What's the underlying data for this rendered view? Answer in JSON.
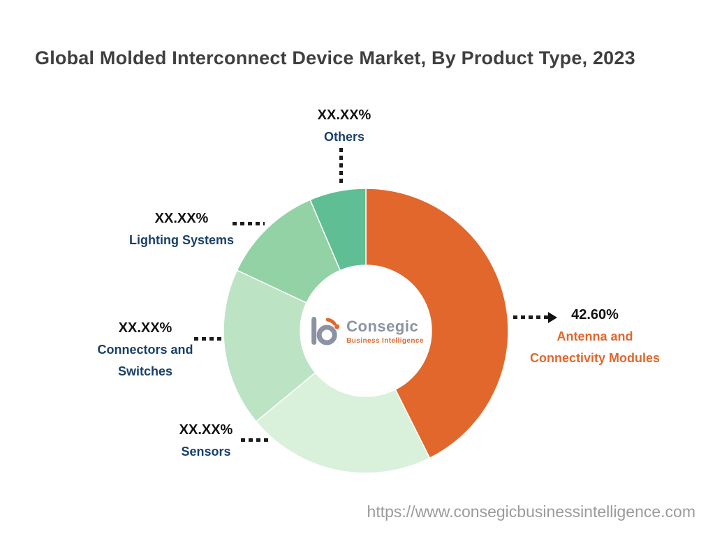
{
  "title": "Global Molded Interconnect Device Market, By Product Type, 2023",
  "footer": {
    "url": "https://www.consegicbusinessintelligence.com"
  },
  "logo": {
    "name": "Consegic",
    "subtitle": "Business Intelligence"
  },
  "colors": {
    "accent_orange": "#e2672c",
    "label_navy": "#17406b",
    "title_gray": "#3f3f3f",
    "url_gray": "#9b9b9b",
    "leader_line": "#1b1b1b"
  },
  "chart_data": {
    "type": "pie",
    "subtype": "donut",
    "title": "Global Molded Interconnect Device Market, By Product Type, 2023",
    "legend_position": "callout-labels",
    "start_angle_deg": 0,
    "direction": "clockwise",
    "inner_radius_ratio": 0.46,
    "segments": [
      {
        "label": "Antenna and Connectivity Modules",
        "label_lines": [
          "Antenna and",
          "Connectivity Modules"
        ],
        "value_label": "42.60%",
        "value": 42.6,
        "masked": false,
        "color": "#e2672c"
      },
      {
        "label": "Sensors",
        "label_lines": [
          "Sensors"
        ],
        "value_label": "XX.XX%",
        "value": 21.4,
        "masked": true,
        "color": "#d9f0db"
      },
      {
        "label": "Connectors and Switches",
        "label_lines": [
          "Connectors and",
          "Switches"
        ],
        "value_label": "XX.XX%",
        "value": 18.0,
        "masked": true,
        "color": "#bce3c3"
      },
      {
        "label": "Lighting Systems",
        "label_lines": [
          "Lighting Systems"
        ],
        "value_label": "XX.XX%",
        "value": 11.6,
        "masked": true,
        "color": "#93d2a4"
      },
      {
        "label": "Others",
        "label_lines": [
          "Others"
        ],
        "value_label": "XX.XX%",
        "value": 6.4,
        "masked": true,
        "color": "#5fbe93"
      }
    ]
  }
}
